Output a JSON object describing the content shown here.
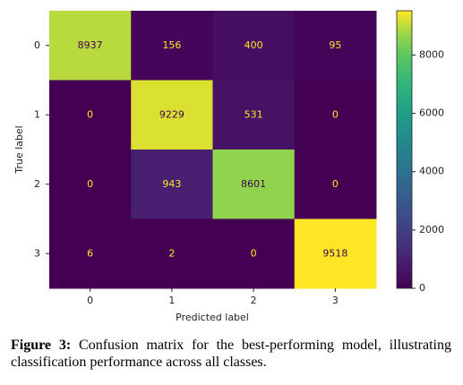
{
  "chart_data": {
    "type": "heatmap",
    "x_label": "Predicted label",
    "y_label": "True label",
    "x_categories": [
      "0",
      "1",
      "2",
      "3"
    ],
    "y_categories": [
      "0",
      "1",
      "2",
      "3"
    ],
    "values": [
      [
        8937,
        156,
        400,
        95
      ],
      [
        0,
        9229,
        531,
        0
      ],
      [
        0,
        943,
        8601,
        0
      ],
      [
        6,
        2,
        0,
        9518
      ]
    ],
    "colormap": "viridis",
    "clim": [
      0,
      9518
    ],
    "cticks": [
      0,
      2000,
      4000,
      6000,
      8000
    ]
  },
  "caption": {
    "label": "Figure 3:",
    "text": "Confusion matrix for the best-performing model, illustrating classification performance across all classes."
  }
}
